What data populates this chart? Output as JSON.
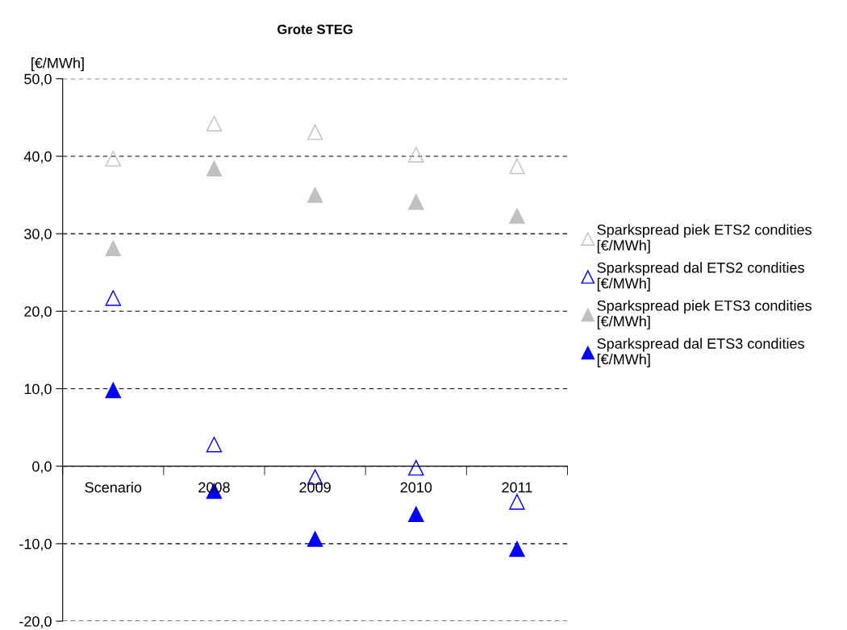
{
  "chart_data": {
    "type": "scatter",
    "title": "Grote STEG",
    "ylabel": "[€/MWh]",
    "categories": [
      "Scenario",
      "2008",
      "2009",
      "2010",
      "2011"
    ],
    "series": [
      {
        "name": "Sparkspread piek ETS2 condities\n[€/MWh]",
        "color": "#c0c0c0",
        "marker": "triangle-open",
        "values": [
          39.7,
          44.2,
          43.1,
          40.2,
          38.7
        ]
      },
      {
        "name": "Sparkspread dal ETS2 condities\n[€/MWh]",
        "color": "#0000ff",
        "marker": "triangle-open",
        "values": [
          21.7,
          2.8,
          -1.4,
          -0.2,
          -4.6
        ]
      },
      {
        "name": "Sparkspread piek ETS3 condities\n[€/MWh]",
        "color": "#c0c0c0",
        "marker": "triangle",
        "values": [
          28.1,
          38.4,
          35.0,
          34.1,
          32.3
        ]
      },
      {
        "name": "Sparkspread dal ETS3 condities\n[€/MWh]",
        "color": "#0000ff",
        "marker": "triangle",
        "values": [
          9.8,
          -3.2,
          -9.4,
          -6.2,
          -10.7
        ]
      }
    ],
    "ylim": [
      -20,
      50
    ],
    "yticks": [
      {
        "value": -20,
        "label": "-20,0"
      },
      {
        "value": -10,
        "label": "-10,0"
      },
      {
        "value": 0,
        "label": "0,0"
      },
      {
        "value": 10,
        "label": "10,0"
      },
      {
        "value": 20,
        "label": "20,0"
      },
      {
        "value": 30,
        "label": "30,0"
      },
      {
        "value": 40,
        "label": "40,0"
      },
      {
        "value": 50,
        "label": "50,0"
      }
    ],
    "grid": "y",
    "legend": "right"
  }
}
